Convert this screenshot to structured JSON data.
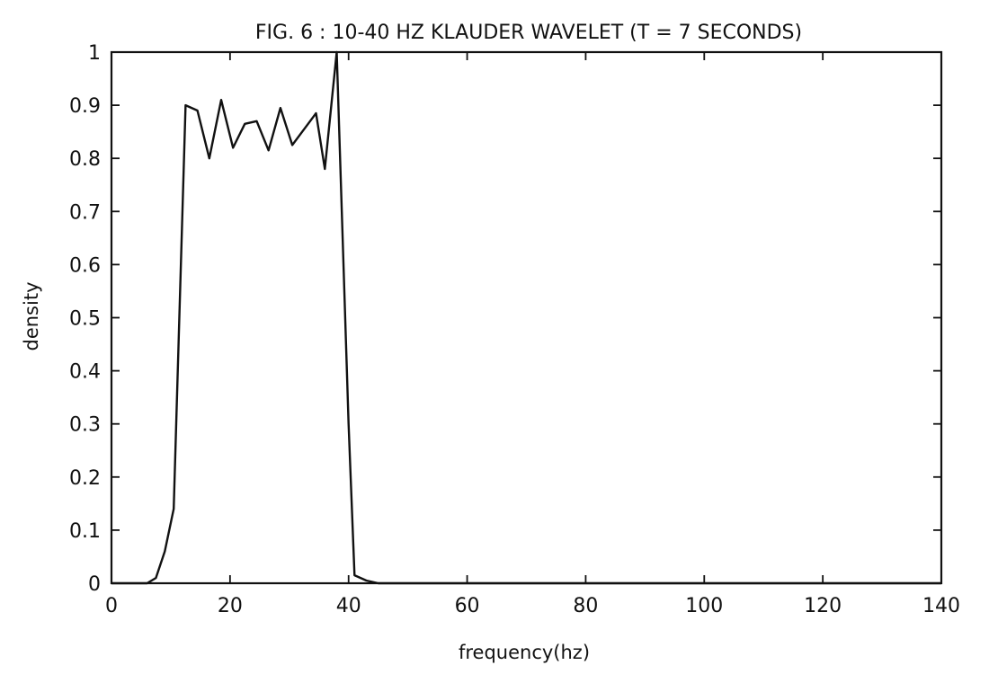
{
  "chart_data": {
    "type": "line",
    "title": "FIG. 6 : 10-40 HZ KLAUDER WAVELET (T = 7 SECONDS)",
    "xlabel": "frequency(hz)",
    "ylabel": "density",
    "xlim": [
      0,
      140
    ],
    "ylim": [
      0,
      1
    ],
    "x_ticks": [
      0,
      20,
      40,
      60,
      80,
      100,
      120,
      140
    ],
    "y_ticks": [
      0,
      0.1,
      0.2,
      0.3,
      0.4,
      0.5,
      0.6,
      0.7,
      0.8,
      0.9,
      1
    ],
    "x_tick_labels": [
      "0",
      "20",
      "40",
      "60",
      "80",
      "100",
      "120",
      "140"
    ],
    "y_tick_labels": [
      "0",
      "0.1",
      "0.2",
      "0.3",
      "0.4",
      "0.5",
      "0.6",
      "0.7",
      "0.8",
      "0.9",
      "1"
    ],
    "grid": false,
    "series": [
      {
        "color": "#111111",
        "x": [
          0,
          2,
          4,
          6,
          7.5,
          9,
          10.5,
          12.5,
          14.5,
          16.5,
          18.5,
          20.5,
          22.5,
          24.5,
          26.5,
          28.5,
          30.5,
          32.5,
          34.5,
          36,
          38,
          40,
          41,
          43,
          45,
          50,
          60,
          140
        ],
        "y": [
          0,
          0,
          0,
          0,
          0.01,
          0.06,
          0.14,
          0.9,
          0.89,
          0.8,
          0.91,
          0.82,
          0.865,
          0.87,
          0.815,
          0.895,
          0.825,
          0.855,
          0.885,
          0.78,
          1.0,
          0.3,
          0.015,
          0.005,
          0,
          0,
          0,
          0
        ]
      }
    ]
  }
}
